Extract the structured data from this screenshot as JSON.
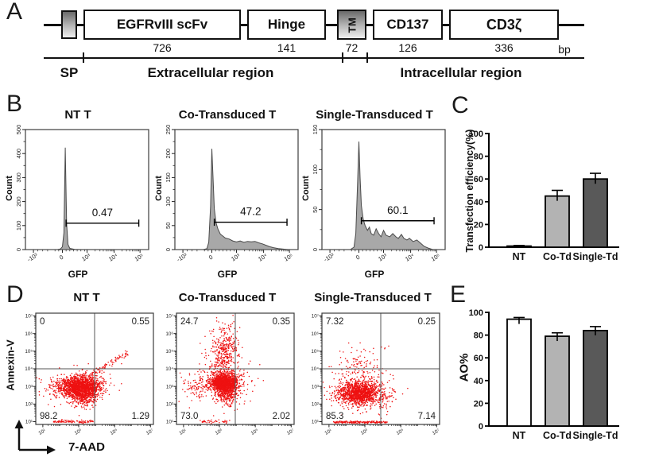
{
  "panelA": {
    "label": "A",
    "boxes": [
      {
        "label": "EGFRvIII  scFv",
        "bp": "726"
      },
      {
        "label": "Hinge",
        "bp": "141"
      },
      {
        "label": "TM",
        "bp": "72"
      },
      {
        "label": "CD137",
        "bp": "126"
      },
      {
        "label": "CD3ζ",
        "bp": "336"
      }
    ],
    "bp_unit": "bp",
    "sp_label": "SP",
    "extracellular_label": "Extracellular region",
    "intracellular_label": "Intracellular region"
  },
  "panelB": {
    "label": "B"
  },
  "panelC": {
    "label": "C"
  },
  "panelD": {
    "label": "D"
  },
  "panelE": {
    "label": "E"
  },
  "chart_data": [
    {
      "id": "hist-nt",
      "type": "histogram",
      "title": "NT T",
      "xlabel": "GFP",
      "ylabel": "Count",
      "y_max": 500,
      "y_ticks": [
        0,
        100,
        200,
        300,
        400,
        500
      ],
      "x_ticks": [
        {
          "label": "-10³",
          "pos": 0.065
        },
        {
          "label": "0",
          "pos": 0.3
        },
        {
          "label": "10³",
          "pos": 0.5
        },
        {
          "label": "10⁴",
          "pos": 0.72
        },
        {
          "label": "10⁵",
          "pos": 0.93
        }
      ],
      "x_minor": [
        0.1,
        0.14,
        0.18,
        0.24,
        0.27,
        0.33,
        0.36,
        0.39,
        0.42,
        0.45,
        0.48,
        0.566,
        0.605,
        0.632,
        0.654,
        0.671,
        0.686,
        0.698,
        0.71,
        0.783,
        0.82,
        0.846,
        0.867,
        0.883,
        0.897,
        0.91,
        0.92
      ],
      "fill": "#a8a8a8",
      "line": "#4a4a4a",
      "gate": {
        "label": "0.47",
        "x1": 0.33,
        "x2": 0.92,
        "y": 110
      },
      "points": [
        [
          0,
          0
        ],
        [
          0.26,
          0
        ],
        [
          0.285,
          3
        ],
        [
          0.3,
          12
        ],
        [
          0.312,
          70
        ],
        [
          0.323,
          425
        ],
        [
          0.334,
          110
        ],
        [
          0.345,
          22
        ],
        [
          0.36,
          5
        ],
        [
          0.4,
          1
        ],
        [
          0.45,
          0
        ],
        [
          1,
          0
        ]
      ]
    },
    {
      "id": "hist-co",
      "type": "histogram",
      "title": "Co-Transduced T",
      "xlabel": "GFP",
      "ylabel": "Count",
      "y_max": 250,
      "y_ticks": [
        0,
        50,
        100,
        150,
        200,
        250
      ],
      "x_ticks": [
        {
          "label": "-10³",
          "pos": 0.065
        },
        {
          "label": "0",
          "pos": 0.3
        },
        {
          "label": "10³",
          "pos": 0.5
        },
        {
          "label": "10⁴",
          "pos": 0.72
        },
        {
          "label": "10⁵",
          "pos": 0.93
        }
      ],
      "x_minor": [
        0.1,
        0.14,
        0.18,
        0.24,
        0.27,
        0.33,
        0.36,
        0.39,
        0.42,
        0.45,
        0.48,
        0.566,
        0.605,
        0.632,
        0.654,
        0.671,
        0.686,
        0.698,
        0.71,
        0.783,
        0.82,
        0.846,
        0.867,
        0.883,
        0.897,
        0.91,
        0.92
      ],
      "fill": "#a8a8a8",
      "line": "#4a4a4a",
      "gate": {
        "label": "47.2",
        "x1": 0.32,
        "x2": 0.91,
        "y": 57
      },
      "points": [
        [
          0,
          0
        ],
        [
          0.23,
          0
        ],
        [
          0.26,
          2
        ],
        [
          0.275,
          15
        ],
        [
          0.29,
          90
        ],
        [
          0.3,
          210
        ],
        [
          0.31,
          150
        ],
        [
          0.32,
          85
        ],
        [
          0.335,
          55
        ],
        [
          0.35,
          42
        ],
        [
          0.37,
          32
        ],
        [
          0.39,
          28
        ],
        [
          0.41,
          24
        ],
        [
          0.44,
          22
        ],
        [
          0.47,
          18
        ],
        [
          0.5,
          16
        ],
        [
          0.53,
          18
        ],
        [
          0.56,
          15
        ],
        [
          0.59,
          17
        ],
        [
          0.62,
          16
        ],
        [
          0.65,
          17
        ],
        [
          0.68,
          14
        ],
        [
          0.71,
          12
        ],
        [
          0.74,
          9
        ],
        [
          0.77,
          6
        ],
        [
          0.8,
          4
        ],
        [
          0.84,
          2
        ],
        [
          0.88,
          1
        ],
        [
          0.92,
          0
        ],
        [
          1,
          0
        ]
      ]
    },
    {
      "id": "hist-single",
      "type": "histogram",
      "title": "Single-Transduced T",
      "xlabel": "GFP",
      "ylabel": "Count",
      "y_max": 150,
      "y_ticks": [
        0,
        50,
        100,
        150
      ],
      "x_ticks": [
        {
          "label": "-10³",
          "pos": 0.065
        },
        {
          "label": "0",
          "pos": 0.3
        },
        {
          "label": "10³",
          "pos": 0.5
        },
        {
          "label": "10⁴",
          "pos": 0.72
        },
        {
          "label": "10⁵",
          "pos": 0.93
        }
      ],
      "x_minor": [
        0.1,
        0.14,
        0.18,
        0.24,
        0.27,
        0.33,
        0.36,
        0.39,
        0.42,
        0.45,
        0.48,
        0.566,
        0.605,
        0.632,
        0.654,
        0.671,
        0.686,
        0.698,
        0.71,
        0.783,
        0.82,
        0.846,
        0.867,
        0.883,
        0.897,
        0.91,
        0.92
      ],
      "fill": "#a8a8a8",
      "line": "#4a4a4a",
      "gate": {
        "label": "60.1",
        "x1": 0.32,
        "x2": 0.91,
        "y": 36
      },
      "points": [
        [
          0,
          0
        ],
        [
          0.23,
          0
        ],
        [
          0.26,
          3
        ],
        [
          0.275,
          20
        ],
        [
          0.29,
          85
        ],
        [
          0.3,
          135
        ],
        [
          0.31,
          90
        ],
        [
          0.32,
          55
        ],
        [
          0.335,
          38
        ],
        [
          0.35,
          30
        ],
        [
          0.37,
          24
        ],
        [
          0.385,
          28
        ],
        [
          0.4,
          20
        ],
        [
          0.42,
          18
        ],
        [
          0.44,
          26
        ],
        [
          0.46,
          20
        ],
        [
          0.48,
          16
        ],
        [
          0.5,
          24
        ],
        [
          0.52,
          18
        ],
        [
          0.55,
          16
        ],
        [
          0.575,
          20
        ],
        [
          0.6,
          16
        ],
        [
          0.62,
          14
        ],
        [
          0.645,
          19
        ],
        [
          0.665,
          14
        ],
        [
          0.69,
          12
        ],
        [
          0.71,
          14
        ],
        [
          0.74,
          10
        ],
        [
          0.77,
          12
        ],
        [
          0.8,
          8
        ],
        [
          0.83,
          4
        ],
        [
          0.86,
          2
        ],
        [
          0.9,
          0
        ],
        [
          1,
          0
        ]
      ]
    },
    {
      "id": "bar-transfection",
      "type": "bar",
      "ylabel": "Transfection efficiency(%)",
      "categories": [
        "NT",
        "Co-Td",
        "Single-Td"
      ],
      "values": [
        1,
        45,
        60
      ],
      "errors": [
        0.5,
        5,
        5
      ],
      "bar_colors": [
        "#262626",
        "#b3b3b3",
        "#595959"
      ],
      "ylim": [
        0,
        100
      ],
      "y_ticks": [
        0,
        20,
        40,
        60,
        80,
        100
      ]
    },
    {
      "id": "scatter-nt",
      "type": "scatter_flow",
      "title": "NT T",
      "ylabel": "Annexin-V",
      "xlabel": "7-AAD",
      "quadrants": {
        "upper_left": "0",
        "upper_right": "0.55",
        "lower_left": "98.2",
        "lower_right": "1.29"
      },
      "y_ticks": [
        "10⁷",
        "10⁶",
        "10⁵",
        "10⁴",
        "10³",
        "10²",
        "10¹"
      ],
      "x_ticks": [
        "10¹",
        "10³",
        "10⁵",
        "10⁷"
      ],
      "x_pos": [
        0.06,
        0.365,
        0.67,
        0.975
      ],
      "dot_color": "#ee1111",
      "clusters": [
        {
          "kind": "gauss",
          "cx": 0.38,
          "cy": 0.66,
          "sx": 0.085,
          "sy": 0.045,
          "n": 1500
        },
        {
          "kind": "gauss",
          "cx": 0.42,
          "cy": 0.74,
          "sx": 0.05,
          "sy": 0.05,
          "n": 300
        },
        {
          "kind": "gauss",
          "cx": 0.38,
          "cy": 0.67,
          "sx": 0.13,
          "sy": 0.08,
          "n": 220
        },
        {
          "kind": "gauss",
          "cx": 0.19,
          "cy": 0.68,
          "sx": 0.07,
          "sy": 0.05,
          "n": 80
        },
        {
          "kind": "line",
          "x1": 0.46,
          "y1": 0.56,
          "x2": 0.78,
          "y2": 0.36,
          "jitter": 0.014,
          "n": 80
        },
        {
          "kind": "line",
          "x1": 0.15,
          "y1": 0.975,
          "x2": 0.48,
          "y2": 0.975,
          "jitter": 0.006,
          "n": 90
        }
      ]
    },
    {
      "id": "scatter-co",
      "type": "scatter_flow",
      "title": "Co-Transduced T",
      "quadrants": {
        "upper_left": "24.7",
        "upper_right": "0.35",
        "lower_left": "73.0",
        "lower_right": "2.02"
      },
      "y_ticks": [
        "10⁷",
        "10⁶",
        "10⁵",
        "10⁴",
        "10³",
        "10²",
        "10¹"
      ],
      "x_ticks": [
        "10¹",
        "10³",
        "10⁵",
        "10⁷"
      ],
      "x_pos": [
        0.06,
        0.365,
        0.67,
        0.975
      ],
      "dot_color": "#ee1111",
      "clusters": [
        {
          "kind": "gauss",
          "cx": 0.41,
          "cy": 0.63,
          "sx": 0.055,
          "sy": 0.042,
          "n": 1400
        },
        {
          "kind": "gauss",
          "cx": 0.43,
          "cy": 0.73,
          "sx": 0.045,
          "sy": 0.05,
          "n": 260
        },
        {
          "kind": "gauss",
          "cx": 0.41,
          "cy": 0.35,
          "sx": 0.055,
          "sy": 0.13,
          "n": 350
        },
        {
          "kind": "gauss",
          "cx": 0.4,
          "cy": 0.58,
          "sx": 0.12,
          "sy": 0.12,
          "n": 260
        },
        {
          "kind": "gauss",
          "cx": 0.17,
          "cy": 0.66,
          "sx": 0.07,
          "sy": 0.06,
          "n": 90
        },
        {
          "kind": "line",
          "x1": 0.2,
          "y1": 0.975,
          "x2": 0.45,
          "y2": 0.975,
          "jitter": 0.006,
          "n": 40
        }
      ]
    },
    {
      "id": "scatter-single",
      "type": "scatter_flow",
      "title": "Single-Transduced T",
      "quadrants": {
        "upper_left": "7.32",
        "upper_right": "0.25",
        "lower_left": "85.3",
        "lower_right": "7.14"
      },
      "y_ticks": [
        "10⁷",
        "10⁶",
        "10⁵",
        "10⁴",
        "10³",
        "10²",
        "10¹"
      ],
      "x_ticks": [
        "10¹",
        "10³",
        "10⁵",
        "10⁷"
      ],
      "x_pos": [
        0.06,
        0.365,
        0.67,
        0.975
      ],
      "dot_color": "#ee1111",
      "clusters": [
        {
          "kind": "gauss",
          "cx": 0.32,
          "cy": 0.72,
          "sx": 0.08,
          "sy": 0.05,
          "n": 1100
        },
        {
          "kind": "gauss",
          "cx": 0.34,
          "cy": 0.7,
          "sx": 0.13,
          "sy": 0.085,
          "n": 260
        },
        {
          "kind": "gauss",
          "cx": 0.3,
          "cy": 0.48,
          "sx": 0.1,
          "sy": 0.09,
          "n": 130
        },
        {
          "kind": "gauss",
          "cx": 0.52,
          "cy": 0.77,
          "sx": 0.055,
          "sy": 0.06,
          "n": 70
        },
        {
          "kind": "gauss",
          "cx": 0.15,
          "cy": 0.72,
          "sx": 0.06,
          "sy": 0.05,
          "n": 60
        },
        {
          "kind": "line",
          "x1": 0.1,
          "y1": 0.98,
          "x2": 0.55,
          "y2": 0.98,
          "jitter": 0.005,
          "n": 160
        }
      ]
    },
    {
      "id": "bar-ao",
      "type": "bar",
      "ylabel": "AO%",
      "categories": [
        "NT",
        "Co-Td",
        "Single-Td"
      ],
      "values": [
        94,
        79,
        84
      ],
      "errors": [
        1.5,
        3,
        3.5
      ],
      "bar_colors": [
        "#ffffff",
        "#b3b3b3",
        "#595959"
      ],
      "ylim": [
        0,
        100
      ],
      "y_ticks": [
        0,
        20,
        40,
        60,
        80,
        100
      ]
    }
  ]
}
